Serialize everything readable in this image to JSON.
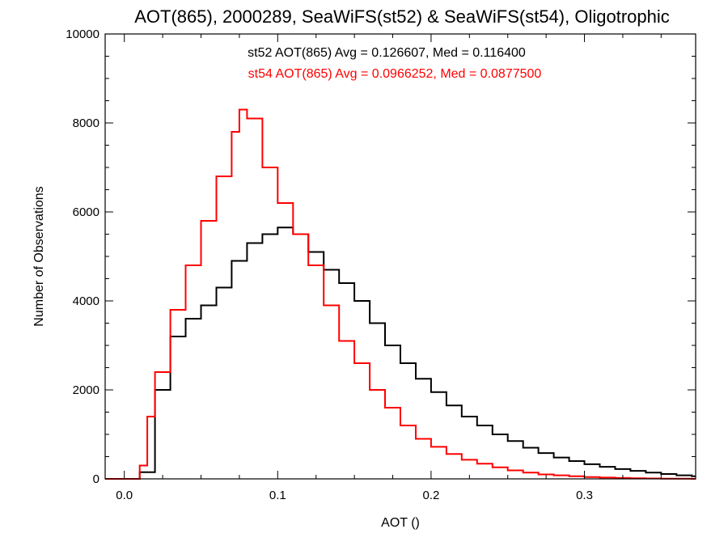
{
  "chart_data": {
    "type": "line",
    "step": true,
    "title": "AOT(865), 2000289, SeaWiFS(st52) & SeaWiFS(st54), Oligotrophic",
    "xlabel": "AOT ()",
    "ylabel": "Number of Observations",
    "xlim": [
      -0.0125,
      0.3725
    ],
    "ylim": [
      0,
      10000
    ],
    "x_ticks": [
      0.0,
      0.1,
      0.2,
      0.3
    ],
    "x_tick_labels": [
      "0.0",
      "0.1",
      "0.2",
      "0.3"
    ],
    "y_ticks": [
      0,
      2000,
      4000,
      6000,
      8000,
      10000
    ],
    "y_tick_labels": [
      "0",
      "2000",
      "4000",
      "6000",
      "8000",
      "10000"
    ],
    "grid": false,
    "annotations": [
      {
        "text": "st52 AOT(865) Avg = 0.126607, Med = 0.116400",
        "color": "#000000"
      },
      {
        "text": "st54 AOT(865) Avg = 0.0966252, Med = 0.0877500",
        "color": "#ff0000"
      }
    ],
    "series": [
      {
        "color": "#000000",
        "x": [
          0.005,
          0.01,
          0.02,
          0.03,
          0.04,
          0.05,
          0.06,
          0.07,
          0.08,
          0.09,
          0.1,
          0.11,
          0.12,
          0.13,
          0.14,
          0.15,
          0.16,
          0.17,
          0.18,
          0.19,
          0.2,
          0.21,
          0.22,
          0.23,
          0.24,
          0.25,
          0.26,
          0.27,
          0.28,
          0.29,
          0.3,
          0.31,
          0.32,
          0.33,
          0.34,
          0.35,
          0.36,
          0.37
        ],
        "y": [
          0,
          150,
          2000,
          3200,
          3600,
          3900,
          4300,
          4900,
          5300,
          5500,
          5650,
          5500,
          5100,
          4700,
          4400,
          4000,
          3500,
          3000,
          2600,
          2250,
          1950,
          1650,
          1400,
          1200,
          1000,
          850,
          700,
          580,
          480,
          400,
          330,
          270,
          220,
          180,
          140,
          110,
          80,
          60
        ]
      },
      {
        "color": "#ff0000",
        "x": [
          0.005,
          0.01,
          0.015,
          0.02,
          0.03,
          0.04,
          0.05,
          0.06,
          0.07,
          0.075,
          0.08,
          0.09,
          0.1,
          0.11,
          0.12,
          0.13,
          0.14,
          0.15,
          0.16,
          0.17,
          0.18,
          0.19,
          0.2,
          0.21,
          0.22,
          0.23,
          0.24,
          0.25,
          0.26,
          0.27,
          0.28,
          0.29,
          0.3,
          0.31,
          0.32,
          0.33,
          0.34,
          0.35,
          0.36,
          0.37
        ],
        "y": [
          0,
          300,
          1400,
          2400,
          3800,
          4800,
          5800,
          6800,
          7800,
          8300,
          8100,
          7000,
          6200,
          5500,
          4800,
          3900,
          3100,
          2600,
          2000,
          1600,
          1200,
          900,
          720,
          560,
          430,
          340,
          260,
          190,
          140,
          100,
          80,
          60,
          40,
          30,
          20,
          15,
          10,
          5,
          3,
          0
        ]
      }
    ]
  }
}
